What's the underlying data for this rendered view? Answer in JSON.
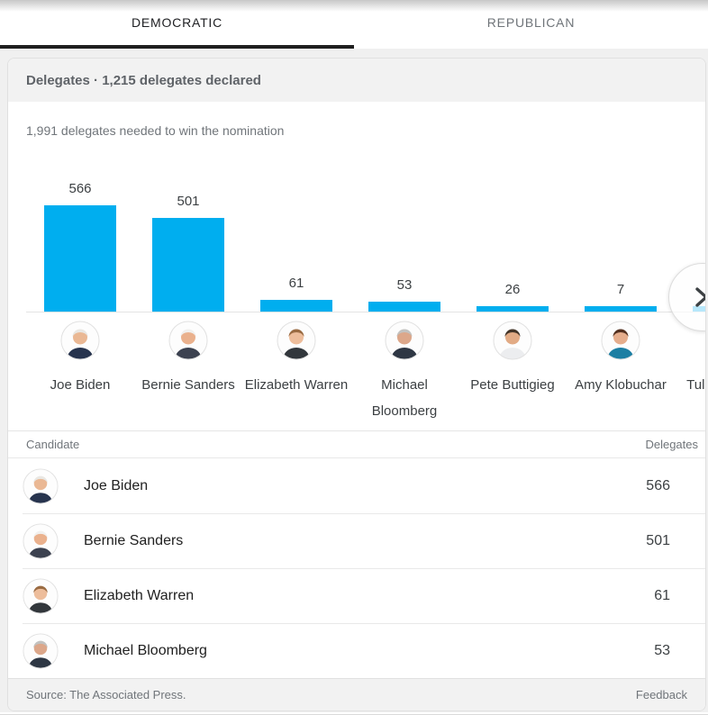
{
  "tabs": [
    {
      "label": "DEMOCRATIC",
      "active": true
    },
    {
      "label": "REPUBLICAN",
      "active": false
    }
  ],
  "panel": {
    "title": "Delegates · 1,215 delegates declared",
    "subtitle": "1,991 delegates needed to win the nomination",
    "source": "Source: The Associated Press.",
    "feedback_label": "Feedback"
  },
  "chart_data": {
    "type": "bar",
    "title": "Delegates · 1,215 delegates declared",
    "subtitle": "1,991 delegates needed to win the nomination",
    "categories": [
      "Joe Biden",
      "Bernie Sanders",
      "Elizabeth Warren",
      "Michael Bloomberg",
      "Pete Buttigieg",
      "Amy Klobuchar",
      "Tulsi Gabbard"
    ],
    "values": [
      566,
      501,
      61,
      53,
      26,
      7,
      null
    ],
    "value_labels": [
      "566",
      "501",
      "61",
      "53",
      "26",
      "7",
      ""
    ],
    "bar_color": "#00aeef",
    "ylim": [
      0,
      566
    ],
    "grid": false,
    "legend": "none",
    "layout": "horizontal carousel, last item clipped at right edge"
  },
  "candidates": [
    {
      "name": "Joe Biden",
      "delegates": 566,
      "avatar": {
        "skin": "#eab894",
        "hair": "#e9e7e3",
        "top": "#27344e"
      }
    },
    {
      "name": "Bernie Sanders",
      "delegates": 501,
      "avatar": {
        "skin": "#eab18d",
        "hair": "#f1f0ee",
        "top": "#3c4250"
      }
    },
    {
      "name": "Elizabeth Warren",
      "delegates": 61,
      "avatar": {
        "skin": "#edbd9b",
        "hair": "#9a6b42",
        "top": "#32373c"
      }
    },
    {
      "name": "Michael Bloomberg",
      "delegates": 53,
      "avatar": {
        "skin": "#dca78a",
        "hair": "#c2c2c0",
        "top": "#2e3744"
      }
    },
    {
      "name": "Pete Buttigieg",
      "delegates": 26,
      "avatar": {
        "skin": "#e2ab85",
        "hair": "#433528",
        "top": "#ecedef"
      }
    },
    {
      "name": "Amy Klobuchar",
      "delegates": 7,
      "avatar": {
        "skin": "#e5ad8c",
        "hair": "#53301f",
        "top": "#1d7fa3"
      }
    },
    {
      "name": "Tulsi Gabbard",
      "delegates": null,
      "partial": true,
      "avatar": {
        "skin": "#d9a07f",
        "hair": "#3b2d26",
        "top": "#5a5f66"
      }
    }
  ],
  "table": {
    "columns": [
      "Candidate",
      "Delegates"
    ],
    "rows": [
      {
        "name": "Joe Biden",
        "delegates": "566"
      },
      {
        "name": "Bernie Sanders",
        "delegates": "501"
      },
      {
        "name": "Elizabeth Warren",
        "delegates": "61"
      },
      {
        "name": "Michael Bloomberg",
        "delegates": "53"
      }
    ]
  },
  "carousel": {
    "next_icon": "chevron-right"
  },
  "colors": {
    "bar": "#00aeef",
    "active_tab": "#202124",
    "inactive_tab": "#6f7479",
    "muted_text": "#70757a"
  }
}
